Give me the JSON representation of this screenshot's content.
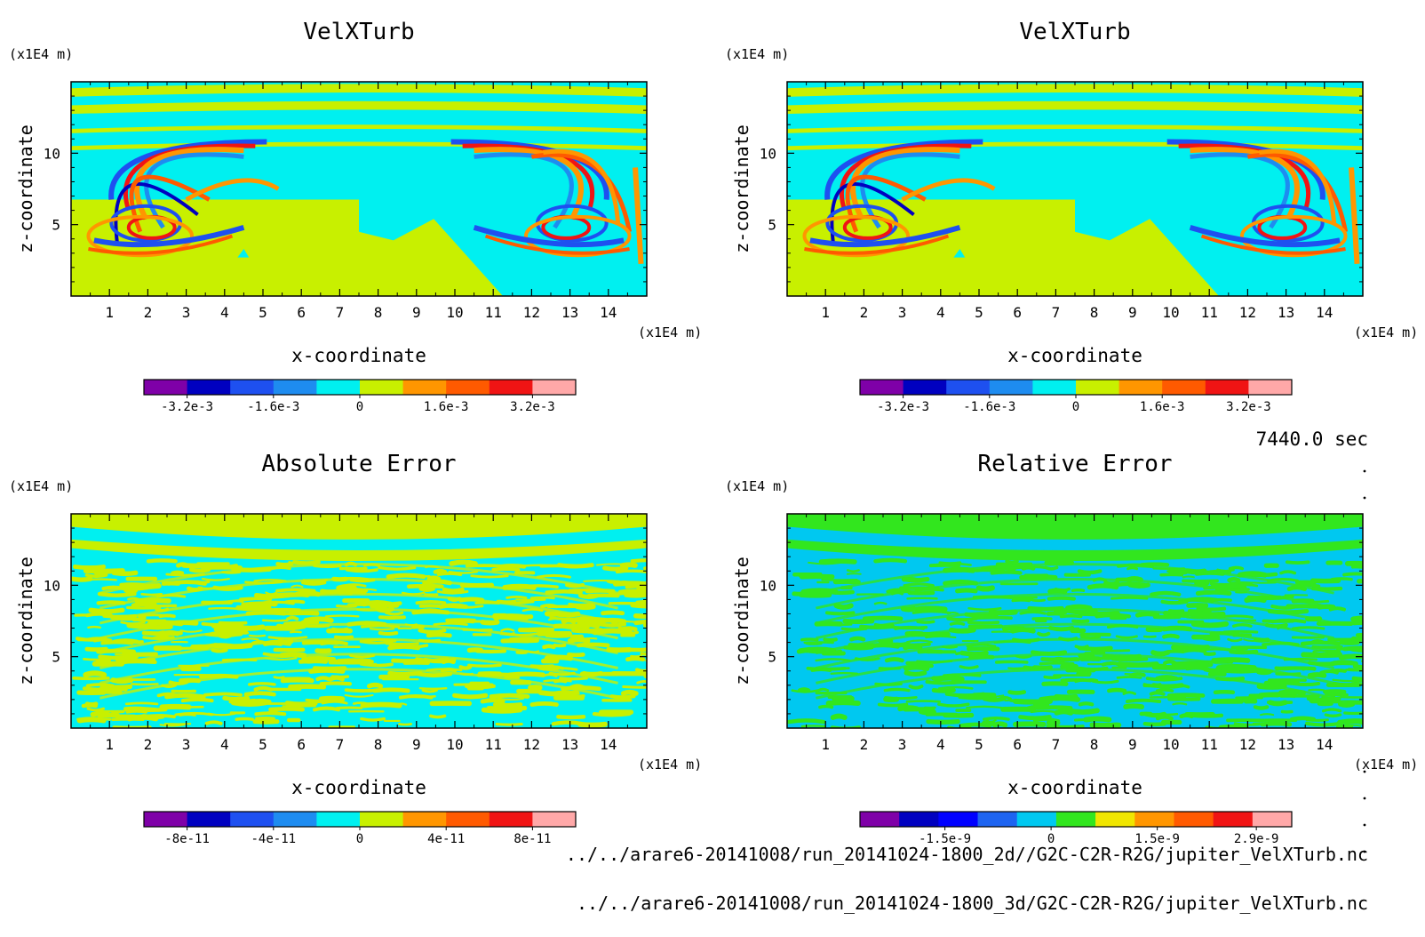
{
  "time_label": "7440.0 sec",
  "files": [
    "../../arare6-20141008/run_20141024-1800_2d//G2C-C2R-R2G/jupiter_VelXTurb.nc",
    "../../arare6-20141008/run_20141024-1800_3d/G2C-C2R-R2G/jupiter_VelXTurb.nc"
  ],
  "chart_data": [
    {
      "type": "heatmap",
      "title": "VelXTurb",
      "xlabel": "x-coordinate",
      "ylabel": "z-coordinate",
      "x_unit": "(x1E4 m)",
      "y_unit": "(x1E4 m)",
      "xlim": [
        0,
        15
      ],
      "ylim": [
        0,
        15
      ],
      "x_ticks": [
        "1",
        "2",
        "3",
        "4",
        "5",
        "6",
        "7",
        "8",
        "9",
        "10",
        "11",
        "12",
        "13",
        "14"
      ],
      "y_ticks": [
        "5",
        "10"
      ],
      "colorbar": {
        "colors": [
          "#7f00a8",
          "#0000c0",
          "#1e50f0",
          "#1e8cf0",
          "#00f0f0",
          "#c8f000",
          "#ff9600",
          "#ff5a00",
          "#f01414",
          "#ffa8a8"
        ],
        "tick_labels": [
          "-3.2e-3",
          "-1.6e-3",
          "0",
          "1.6e-3",
          "3.2e-3"
        ],
        "tick_positions": [
          -0.0032,
          -0.0016,
          0,
          0.0016,
          0.0032
        ],
        "range": [
          -0.004,
          0.004
        ]
      },
      "pattern": "vortex-2d"
    },
    {
      "type": "heatmap",
      "title": "VelXTurb",
      "xlabel": "x-coordinate",
      "ylabel": "z-coordinate",
      "x_unit": "(x1E4 m)",
      "y_unit": "(x1E4 m)",
      "xlim": [
        0,
        15
      ],
      "ylim": [
        0,
        15
      ],
      "x_ticks": [
        "1",
        "2",
        "3",
        "4",
        "5",
        "6",
        "7",
        "8",
        "9",
        "10",
        "11",
        "12",
        "13",
        "14"
      ],
      "y_ticks": [
        "5",
        "10"
      ],
      "colorbar": {
        "colors": [
          "#7f00a8",
          "#0000c0",
          "#1e50f0",
          "#1e8cf0",
          "#00f0f0",
          "#c8f000",
          "#ff9600",
          "#ff5a00",
          "#f01414",
          "#ffa8a8"
        ],
        "tick_labels": [
          "-3.2e-3",
          "-1.6e-3",
          "0",
          "1.6e-3",
          "3.2e-3"
        ],
        "tick_positions": [
          -0.0032,
          -0.0016,
          0,
          0.0016,
          0.0032
        ],
        "range": [
          -0.004,
          0.004
        ]
      },
      "pattern": "vortex-3d"
    },
    {
      "type": "heatmap",
      "title": "Absolute Error",
      "xlabel": "x-coordinate",
      "ylabel": "z-coordinate",
      "x_unit": "(x1E4 m)",
      "y_unit": "(x1E4 m)",
      "xlim": [
        0,
        15
      ],
      "ylim": [
        0,
        15
      ],
      "x_ticks": [
        "1",
        "2",
        "3",
        "4",
        "5",
        "6",
        "7",
        "8",
        "9",
        "10",
        "11",
        "12",
        "13",
        "14"
      ],
      "y_ticks": [
        "5",
        "10"
      ],
      "colorbar": {
        "colors": [
          "#7f00a8",
          "#0000c0",
          "#1e50f0",
          "#1e8cf0",
          "#00f0f0",
          "#c8f000",
          "#ff9600",
          "#ff5a00",
          "#f01414",
          "#ffa8a8"
        ],
        "tick_labels": [
          "-8e-11",
          "-4e-11",
          "0",
          "4e-11",
          "8e-11"
        ],
        "tick_positions": [
          -8e-11,
          -4e-11,
          0,
          4e-11,
          8e-11
        ],
        "range": [
          -1e-10,
          1e-10
        ]
      },
      "pattern": "noise-abs"
    },
    {
      "type": "heatmap",
      "title": "Relative Error",
      "xlabel": "x-coordinate",
      "ylabel": "z-coordinate",
      "x_unit": "(x1E4 m)",
      "y_unit": "(x1E4 m)",
      "xlim": [
        0,
        15
      ],
      "ylim": [
        0,
        15
      ],
      "x_ticks": [
        "1",
        "2",
        "3",
        "4",
        "5",
        "6",
        "7",
        "8",
        "9",
        "10",
        "11",
        "12",
        "13",
        "14"
      ],
      "y_ticks": [
        "5",
        "10"
      ],
      "colorbar": {
        "colors": [
          "#7f00a8",
          "#0000c0",
          "#0000ff",
          "#1e64f0",
          "#00c8f0",
          "#32e61e",
          "#f0e600",
          "#ff9600",
          "#ff5a00",
          "#f01414",
          "#ffa8a8"
        ],
        "tick_labels": [
          "-1.5e-9",
          "0",
          "1.5e-9",
          "2.9e-9"
        ],
        "tick_positions": [
          -1.5e-09,
          0,
          1.5e-09,
          2.9e-09
        ],
        "range": [
          -2.7e-09,
          3.4e-09
        ]
      },
      "pattern": "noise-rel"
    }
  ]
}
